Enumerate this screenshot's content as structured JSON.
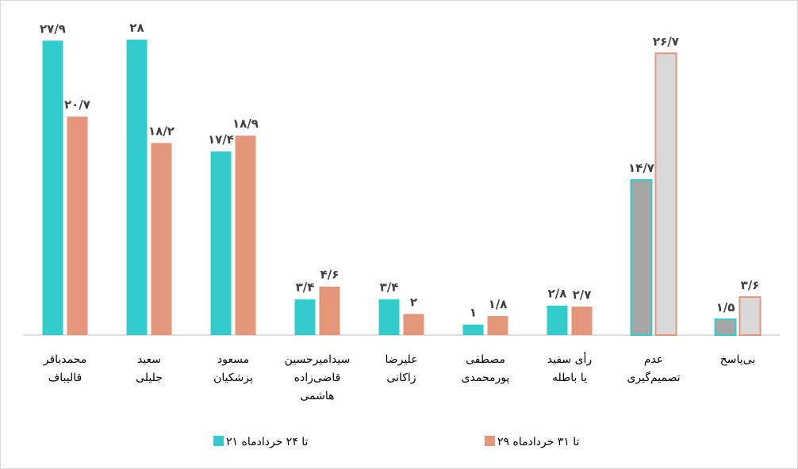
{
  "chart_data": {
    "type": "bar",
    "categories": [
      [
        "محمدباقر",
        "قالیباف"
      ],
      [
        "سعید",
        "جلیلی"
      ],
      [
        "مسعود",
        "پزشکیان"
      ],
      [
        "سیدامیرحسین",
        "قاضی‌زاده",
        "هاشمی"
      ],
      [
        "علیرضا",
        "زاکانی"
      ],
      [
        "مصطفی",
        "پورمحمدی"
      ],
      [
        "رأی سفید",
        "یا باطله"
      ],
      [
        "عدم",
        "تصمیم‌گیری"
      ],
      [
        "بی‌پاسخ"
      ]
    ],
    "series": [
      {
        "name": "۲۱ تا ۲۴ خردادماه",
        "color": "#33CCCC",
        "values": [
          27.9,
          28,
          17.4,
          3.4,
          3.4,
          1,
          2.8,
          14.7,
          1.5
        ],
        "labels": [
          "۲۷/۹",
          "۲۸",
          "۱۷/۴",
          "۳/۴",
          "۳/۴",
          "۱",
          "۲/۸",
          "۱۴/۷",
          "۱/۵"
        ]
      },
      {
        "name": "۲۹ تا ۳۱ خردادماه",
        "color": "#E3967A",
        "values": [
          20.7,
          18.2,
          18.9,
          4.6,
          2,
          1.8,
          2.7,
          26.7,
          3.6
        ],
        "labels": [
          "۲۰/۷",
          "۱۸/۲",
          "۱۸/۹",
          "۴/۶",
          "۲",
          "۱/۸",
          "۲/۷",
          "۲۶/۷",
          "۳/۶"
        ]
      }
    ],
    "highlight_fill": {
      "series_0": "#A6A6A6",
      "series_1": "#D9D9D9"
    },
    "highlight_categories": [
      7,
      8
    ],
    "ylim": [
      0,
      28
    ],
    "grid": false,
    "legend": "bottom",
    "xlabel": "",
    "ylabel": "",
    "title": ""
  }
}
